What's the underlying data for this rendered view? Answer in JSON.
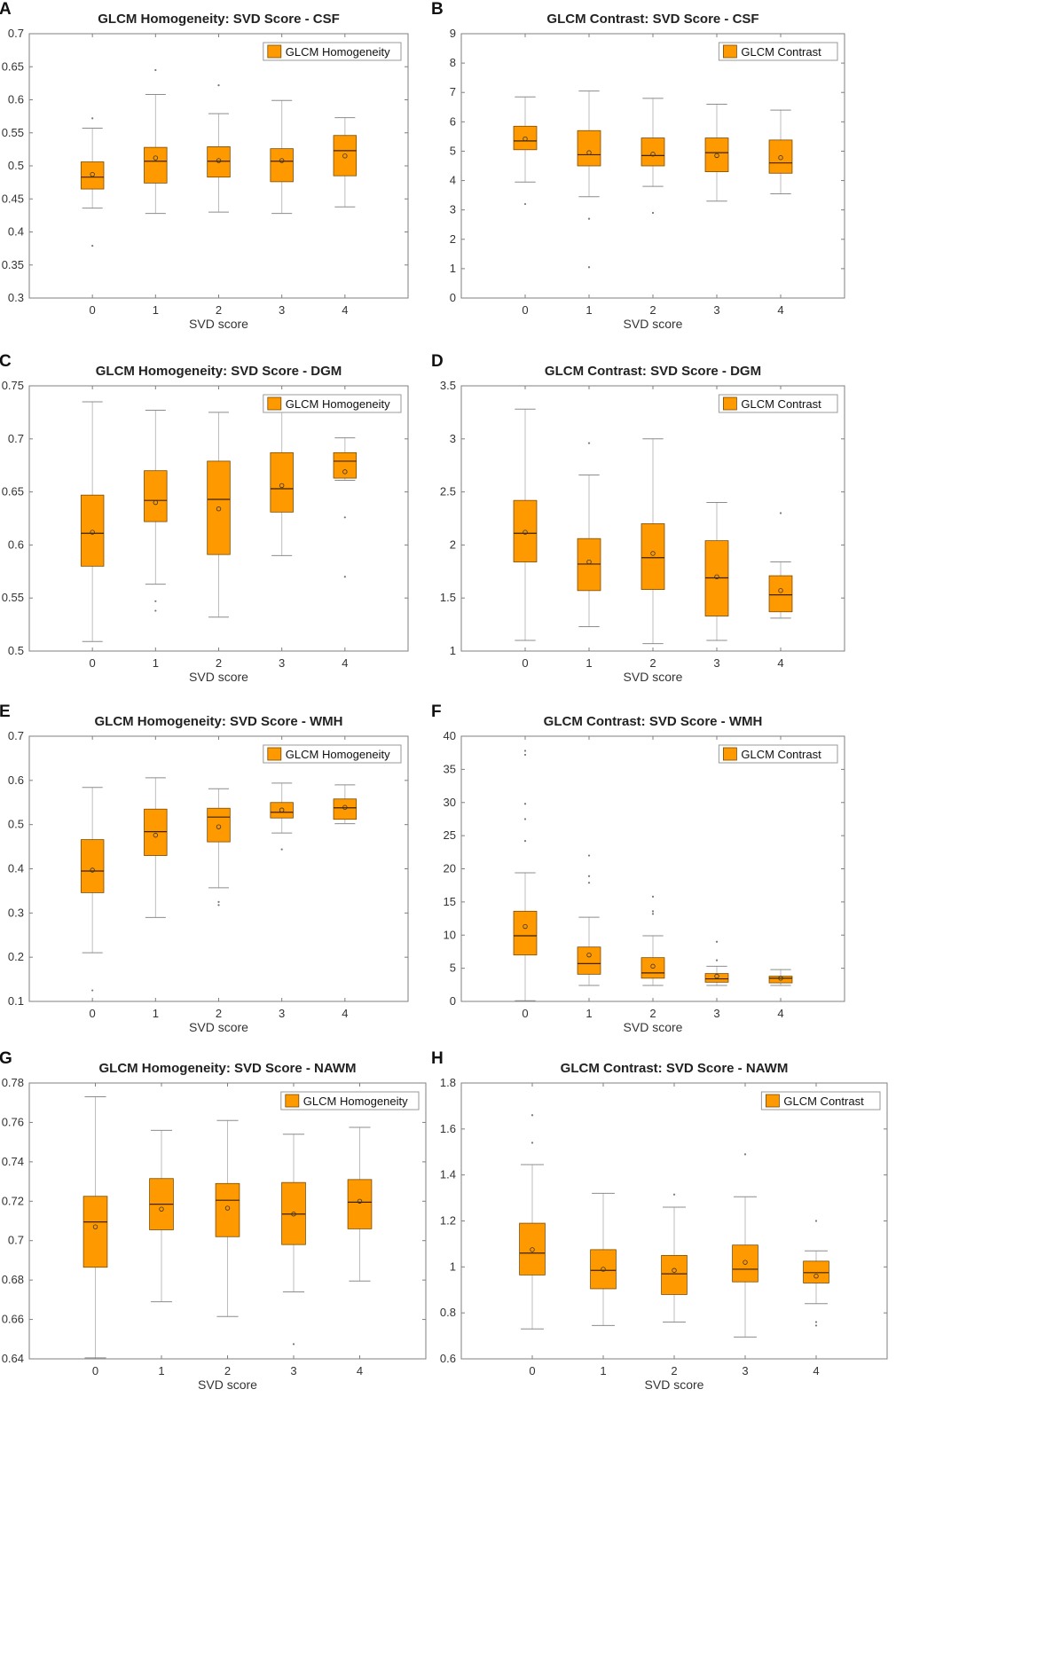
{
  "colors": {
    "box_fill": "#FF9900",
    "box_edge": "#7a4a00",
    "median": "#3b2200",
    "whisker": "#bdbdbd",
    "axis": "#7f7f7f"
  },
  "chart_data": [
    {
      "panel": "A",
      "type": "box",
      "title": "GLCM Homogeneity: SVD Score - CSF",
      "xlabel": "SVD score",
      "ylabel": "",
      "ylim": [
        0.3,
        0.7
      ],
      "yticks": [
        0.3,
        0.35,
        0.4,
        0.45,
        0.5,
        0.55,
        0.6,
        0.65,
        0.7
      ],
      "ytick_labels": [
        "0.3",
        "0.35",
        "0.4",
        "0.45",
        "0.5",
        "0.55",
        "0.6",
        "0.65",
        "0.7"
      ],
      "categories": [
        "0",
        "1",
        "2",
        "3",
        "4"
      ],
      "legend": {
        "label": "GLCM Homogeneity",
        "position": "top-right"
      },
      "boxes": [
        {
          "q1": 0.465,
          "median": 0.483,
          "q3": 0.506,
          "mean": 0.487,
          "whisker_low": 0.436,
          "whisker_high": 0.557,
          "outliers": [
            0.572,
            0.379
          ]
        },
        {
          "q1": 0.474,
          "median": 0.507,
          "q3": 0.528,
          "mean": 0.512,
          "whisker_low": 0.428,
          "whisker_high": 0.608,
          "outliers": [
            0.645
          ]
        },
        {
          "q1": 0.483,
          "median": 0.507,
          "q3": 0.529,
          "mean": 0.508,
          "whisker_low": 0.43,
          "whisker_high": 0.579,
          "outliers": [
            0.622
          ]
        },
        {
          "q1": 0.476,
          "median": 0.507,
          "q3": 0.526,
          "mean": 0.508,
          "whisker_low": 0.428,
          "whisker_high": 0.599,
          "outliers": []
        },
        {
          "q1": 0.485,
          "median": 0.523,
          "q3": 0.546,
          "mean": 0.515,
          "whisker_low": 0.438,
          "whisker_high": 0.573,
          "outliers": []
        }
      ]
    },
    {
      "panel": "B",
      "type": "box",
      "title": "GLCM Contrast: SVD Score - CSF",
      "xlabel": "SVD score",
      "ylabel": "",
      "ylim": [
        0,
        9
      ],
      "yticks": [
        0,
        1,
        2,
        3,
        4,
        5,
        6,
        7,
        8,
        9
      ],
      "ytick_labels": [
        "0",
        "1",
        "2",
        "3",
        "4",
        "5",
        "6",
        "7",
        "8",
        "9"
      ],
      "categories": [
        "0",
        "1",
        "2",
        "3",
        "4"
      ],
      "legend": {
        "label": "GLCM Contrast",
        "position": "top-right"
      },
      "boxes": [
        {
          "q1": 5.05,
          "median": 5.35,
          "q3": 5.85,
          "mean": 5.42,
          "whisker_low": 3.95,
          "whisker_high": 6.85,
          "outliers": [
            3.2
          ]
        },
        {
          "q1": 4.5,
          "median": 4.88,
          "q3": 5.7,
          "mean": 4.95,
          "whisker_low": 3.45,
          "whisker_high": 7.05,
          "outliers": [
            2.7,
            1.05
          ]
        },
        {
          "q1": 4.5,
          "median": 4.85,
          "q3": 5.45,
          "mean": 4.9,
          "whisker_low": 3.8,
          "whisker_high": 6.8,
          "outliers": [
            2.9
          ]
        },
        {
          "q1": 4.3,
          "median": 4.95,
          "q3": 5.45,
          "mean": 4.85,
          "whisker_low": 3.3,
          "whisker_high": 6.6,
          "outliers": []
        },
        {
          "q1": 4.25,
          "median": 4.6,
          "q3": 5.38,
          "mean": 4.78,
          "whisker_low": 3.55,
          "whisker_high": 6.4,
          "outliers": []
        }
      ]
    },
    {
      "panel": "C",
      "type": "box",
      "title": "GLCM Homogeneity: SVD Score - DGM",
      "xlabel": "SVD score",
      "ylabel": "",
      "ylim": [
        0.5,
        0.75
      ],
      "yticks": [
        0.5,
        0.55,
        0.6,
        0.65,
        0.7,
        0.75
      ],
      "ytick_labels": [
        "0.5",
        "0.55",
        "0.6",
        "0.65",
        "0.7",
        "0.75"
      ],
      "categories": [
        "0",
        "1",
        "2",
        "3",
        "4"
      ],
      "legend": {
        "label": "GLCM Homogeneity",
        "position": "top-right"
      },
      "boxes": [
        {
          "q1": 0.58,
          "median": 0.611,
          "q3": 0.647,
          "mean": 0.612,
          "whisker_low": 0.509,
          "whisker_high": 0.735,
          "outliers": []
        },
        {
          "q1": 0.622,
          "median": 0.642,
          "q3": 0.67,
          "mean": 0.64,
          "whisker_low": 0.563,
          "whisker_high": 0.727,
          "outliers": [
            0.547,
            0.538
          ]
        },
        {
          "q1": 0.591,
          "median": 0.643,
          "q3": 0.679,
          "mean": 0.634,
          "whisker_low": 0.532,
          "whisker_high": 0.725,
          "outliers": []
        },
        {
          "q1": 0.631,
          "median": 0.653,
          "q3": 0.687,
          "mean": 0.656,
          "whisker_low": 0.59,
          "whisker_high": 0.737,
          "outliers": []
        },
        {
          "q1": 0.663,
          "median": 0.679,
          "q3": 0.687,
          "mean": 0.669,
          "whisker_low": 0.661,
          "whisker_high": 0.701,
          "outliers": [
            0.626,
            0.57
          ]
        }
      ]
    },
    {
      "panel": "D",
      "type": "box",
      "title": "GLCM Contrast: SVD Score - DGM",
      "xlabel": "SVD score",
      "ylabel": "",
      "ylim": [
        1,
        3.5
      ],
      "yticks": [
        1,
        1.5,
        2,
        2.5,
        3,
        3.5
      ],
      "ytick_labels": [
        "1",
        "1.5",
        "2",
        "2.5",
        "3",
        "3.5"
      ],
      "categories": [
        "0",
        "1",
        "2",
        "3",
        "4"
      ],
      "legend": {
        "label": "GLCM Contrast",
        "position": "top-right"
      },
      "boxes": [
        {
          "q1": 1.84,
          "median": 2.11,
          "q3": 2.42,
          "mean": 2.12,
          "whisker_low": 1.1,
          "whisker_high": 3.28,
          "outliers": []
        },
        {
          "q1": 1.57,
          "median": 1.82,
          "q3": 2.06,
          "mean": 1.84,
          "whisker_low": 1.23,
          "whisker_high": 2.66,
          "outliers": [
            2.96
          ]
        },
        {
          "q1": 1.58,
          "median": 1.88,
          "q3": 2.2,
          "mean": 1.92,
          "whisker_low": 1.07,
          "whisker_high": 3.0,
          "outliers": []
        },
        {
          "q1": 1.33,
          "median": 1.69,
          "q3": 2.04,
          "mean": 1.7,
          "whisker_low": 1.1,
          "whisker_high": 2.4,
          "outliers": []
        },
        {
          "q1": 1.37,
          "median": 1.53,
          "q3": 1.71,
          "mean": 1.57,
          "whisker_low": 1.31,
          "whisker_high": 1.84,
          "outliers": [
            2.3
          ]
        }
      ]
    },
    {
      "panel": "E",
      "type": "box",
      "title": "GLCM Homogeneity: SVD Score - WMH",
      "xlabel": "SVD score",
      "ylabel": "",
      "ylim": [
        0.1,
        0.7
      ],
      "yticks": [
        0.1,
        0.2,
        0.3,
        0.4,
        0.5,
        0.6,
        0.7
      ],
      "ytick_labels": [
        "0.1",
        "0.2",
        "0.3",
        "0.4",
        "0.5",
        "0.6",
        "0.7"
      ],
      "categories": [
        "0",
        "1",
        "2",
        "3",
        "4"
      ],
      "legend": {
        "label": "GLCM Homogeneity",
        "position": "top-right"
      },
      "boxes": [
        {
          "q1": 0.346,
          "median": 0.395,
          "q3": 0.466,
          "mean": 0.397,
          "whisker_low": 0.21,
          "whisker_high": 0.584,
          "outliers": [
            0.125
          ]
        },
        {
          "q1": 0.43,
          "median": 0.484,
          "q3": 0.535,
          "mean": 0.476,
          "whisker_low": 0.29,
          "whisker_high": 0.606,
          "outliers": []
        },
        {
          "q1": 0.461,
          "median": 0.517,
          "q3": 0.537,
          "mean": 0.495,
          "whisker_low": 0.357,
          "whisker_high": 0.581,
          "outliers": [
            0.325,
            0.318
          ]
        },
        {
          "q1": 0.515,
          "median": 0.528,
          "q3": 0.55,
          "mean": 0.533,
          "whisker_low": 0.481,
          "whisker_high": 0.594,
          "outliers": [
            0.444
          ]
        },
        {
          "q1": 0.512,
          "median": 0.538,
          "q3": 0.558,
          "mean": 0.539,
          "whisker_low": 0.502,
          "whisker_high": 0.59,
          "outliers": []
        }
      ]
    },
    {
      "panel": "F",
      "type": "box",
      "title": "GLCM Contrast: SVD Score - WMH",
      "xlabel": "SVD score",
      "ylabel": "",
      "ylim": [
        0,
        40
      ],
      "yticks": [
        0,
        5,
        10,
        15,
        20,
        25,
        30,
        35,
        40
      ],
      "ytick_labels": [
        "0",
        "5",
        "10",
        "15",
        "20",
        "25",
        "30",
        "35",
        "40"
      ],
      "categories": [
        "0",
        "1",
        "2",
        "3",
        "4"
      ],
      "legend": {
        "label": "GLCM Contrast",
        "position": "top-right"
      },
      "boxes": [
        {
          "q1": 7.0,
          "median": 9.9,
          "q3": 13.6,
          "mean": 11.3,
          "whisker_low": 0.1,
          "whisker_high": 19.4,
          "outliers": [
            37.8,
            37.2,
            29.8,
            27.5,
            24.2
          ]
        },
        {
          "q1": 4.1,
          "median": 5.7,
          "q3": 8.2,
          "mean": 7.0,
          "whisker_low": 2.4,
          "whisker_high": 12.7,
          "outliers": [
            22.0,
            18.9,
            17.9
          ]
        },
        {
          "q1": 3.5,
          "median": 4.3,
          "q3": 6.6,
          "mean": 5.3,
          "whisker_low": 2.4,
          "whisker_high": 9.9,
          "outliers": [
            15.8,
            13.6,
            13.2
          ]
        },
        {
          "q1": 2.9,
          "median": 3.4,
          "q3": 4.2,
          "mean": 3.8,
          "whisker_low": 2.4,
          "whisker_high": 5.3,
          "outliers": [
            9.0,
            6.2
          ]
        },
        {
          "q1": 2.8,
          "median": 3.5,
          "q3": 3.8,
          "mean": 3.5,
          "whisker_low": 2.4,
          "whisker_high": 4.8,
          "outliers": []
        }
      ]
    },
    {
      "panel": "G",
      "type": "box",
      "title": "GLCM Homogeneity: SVD Score - NAWM",
      "xlabel": "SVD score",
      "ylabel": "",
      "ylim": [
        0.64,
        0.78
      ],
      "yticks": [
        0.64,
        0.66,
        0.68,
        0.7,
        0.72,
        0.74,
        0.76,
        0.78
      ],
      "ytick_labels": [
        "0.64",
        "0.66",
        "0.68",
        "0.7",
        "0.72",
        "0.74",
        "0.76",
        "0.78"
      ],
      "categories": [
        "0",
        "1",
        "2",
        "3",
        "4"
      ],
      "legend": {
        "label": "GLCM Homogeneity",
        "position": "top-right"
      },
      "boxes": [
        {
          "q1": 0.6865,
          "median": 0.7095,
          "q3": 0.7225,
          "mean": 0.707,
          "whisker_low": 0.6405,
          "whisker_high": 0.773,
          "outliers": []
        },
        {
          "q1": 0.7055,
          "median": 0.7185,
          "q3": 0.7315,
          "mean": 0.716,
          "whisker_low": 0.669,
          "whisker_high": 0.756,
          "outliers": []
        },
        {
          "q1": 0.702,
          "median": 0.7205,
          "q3": 0.729,
          "mean": 0.7165,
          "whisker_low": 0.6615,
          "whisker_high": 0.761,
          "outliers": []
        },
        {
          "q1": 0.698,
          "median": 0.7135,
          "q3": 0.7295,
          "mean": 0.7135,
          "whisker_low": 0.674,
          "whisker_high": 0.754,
          "outliers": [
            0.6475
          ]
        },
        {
          "q1": 0.706,
          "median": 0.7195,
          "q3": 0.731,
          "mean": 0.72,
          "whisker_low": 0.6795,
          "whisker_high": 0.7575,
          "outliers": []
        }
      ]
    },
    {
      "panel": "H",
      "type": "box",
      "title": "GLCM Contrast: SVD Score - NAWM",
      "xlabel": "SVD score",
      "ylabel": "",
      "ylim": [
        0.6,
        1.8
      ],
      "yticks": [
        0.6,
        0.8,
        1.0,
        1.2,
        1.4,
        1.6,
        1.8
      ],
      "ytick_labels": [
        "0.6",
        "0.8",
        "1",
        "1.2",
        "1.4",
        "1.6",
        "1.8"
      ],
      "categories": [
        "0",
        "1",
        "2",
        "3",
        "4"
      ],
      "legend": {
        "label": "GLCM Contrast",
        "position": "top-right"
      },
      "boxes": [
        {
          "q1": 0.965,
          "median": 1.06,
          "q3": 1.19,
          "mean": 1.075,
          "whisker_low": 0.73,
          "whisker_high": 1.445,
          "outliers": [
            1.66,
            1.54
          ]
        },
        {
          "q1": 0.905,
          "median": 0.985,
          "q3": 1.075,
          "mean": 0.99,
          "whisker_low": 0.745,
          "whisker_high": 1.32,
          "outliers": []
        },
        {
          "q1": 0.88,
          "median": 0.97,
          "q3": 1.05,
          "mean": 0.985,
          "whisker_low": 0.76,
          "whisker_high": 1.26,
          "outliers": [
            1.315
          ]
        },
        {
          "q1": 0.935,
          "median": 0.99,
          "q3": 1.095,
          "mean": 1.02,
          "whisker_low": 0.695,
          "whisker_high": 1.305,
          "outliers": [
            1.49
          ]
        },
        {
          "q1": 0.93,
          "median": 0.975,
          "q3": 1.025,
          "mean": 0.96,
          "whisker_low": 0.84,
          "whisker_high": 1.07,
          "outliers": [
            1.2,
            0.76,
            0.745
          ]
        }
      ]
    }
  ]
}
